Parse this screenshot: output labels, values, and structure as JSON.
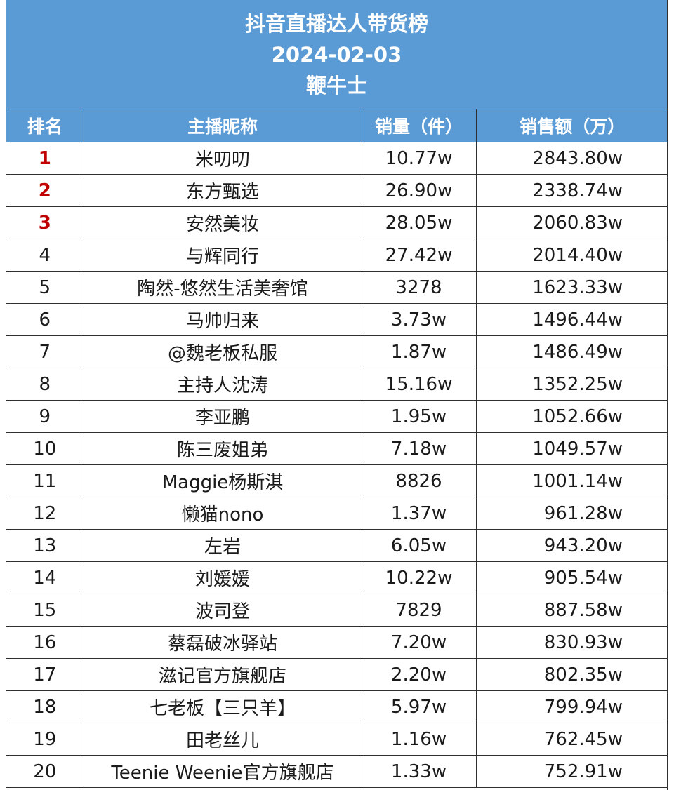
{
  "header": {
    "title": "抖音直播达人带货榜",
    "date": "2024-02-03",
    "source": "鞭牛士"
  },
  "columns": {
    "rank": "排名",
    "name": "主播昵称",
    "volume": "销量（件）",
    "sales": "销售额（万）"
  },
  "rows": [
    {
      "rank": "1",
      "name": "米叨叨",
      "volume": "10.77w",
      "sales": "2843.80w"
    },
    {
      "rank": "2",
      "name": "东方甄选",
      "volume": "26.90w",
      "sales": "2338.74w"
    },
    {
      "rank": "3",
      "name": "安然美妆",
      "volume": "28.05w",
      "sales": "2060.83w"
    },
    {
      "rank": "4",
      "name": "与辉同行",
      "volume": "27.42w",
      "sales": "2014.40w"
    },
    {
      "rank": "5",
      "name": "陶然-悠然生活美奢馆",
      "volume": "3278",
      "sales": "1623.33w"
    },
    {
      "rank": "6",
      "name": "马帅归来",
      "volume": "3.73w",
      "sales": "1496.44w"
    },
    {
      "rank": "7",
      "name": "@魏老板私服",
      "volume": "1.87w",
      "sales": "1486.49w"
    },
    {
      "rank": "8",
      "name": "主持人沈涛",
      "volume": "15.16w",
      "sales": "1352.25w"
    },
    {
      "rank": "9",
      "name": "李亚鹏",
      "volume": "1.95w",
      "sales": "1052.66w"
    },
    {
      "rank": "10",
      "name": "陈三废姐弟",
      "volume": "7.18w",
      "sales": "1049.57w"
    },
    {
      "rank": "11",
      "name": "Maggie杨斯淇",
      "volume": "8826",
      "sales": "1001.14w"
    },
    {
      "rank": "12",
      "name": "懒猫nono",
      "volume": "1.37w",
      "sales": "961.28w"
    },
    {
      "rank": "13",
      "name": "左岩",
      "volume": "6.05w",
      "sales": "943.20w"
    },
    {
      "rank": "14",
      "name": "刘媛媛",
      "volume": "10.22w",
      "sales": "905.54w"
    },
    {
      "rank": "15",
      "name": "波司登",
      "volume": "7829",
      "sales": "887.58w"
    },
    {
      "rank": "16",
      "name": "蔡磊破冰驿站",
      "volume": "7.20w",
      "sales": "830.93w"
    },
    {
      "rank": "17",
      "name": "滋记官方旗舰店",
      "volume": "2.20w",
      "sales": "802.35w"
    },
    {
      "rank": "18",
      "name": "七老板【三只羊】",
      "volume": "5.97w",
      "sales": "799.94w"
    },
    {
      "rank": "19",
      "name": "田老丝儿",
      "volume": "1.16w",
      "sales": "762.45w"
    },
    {
      "rank": "20",
      "name": "Teenie Weenie官方旗舰店",
      "volume": "1.33w",
      "sales": "752.91w"
    }
  ],
  "colors": {
    "header_bg": "#5b9bd5",
    "header_text": "#ffffff",
    "top_rank": "#c00000",
    "grid": "#2f2f2f"
  }
}
